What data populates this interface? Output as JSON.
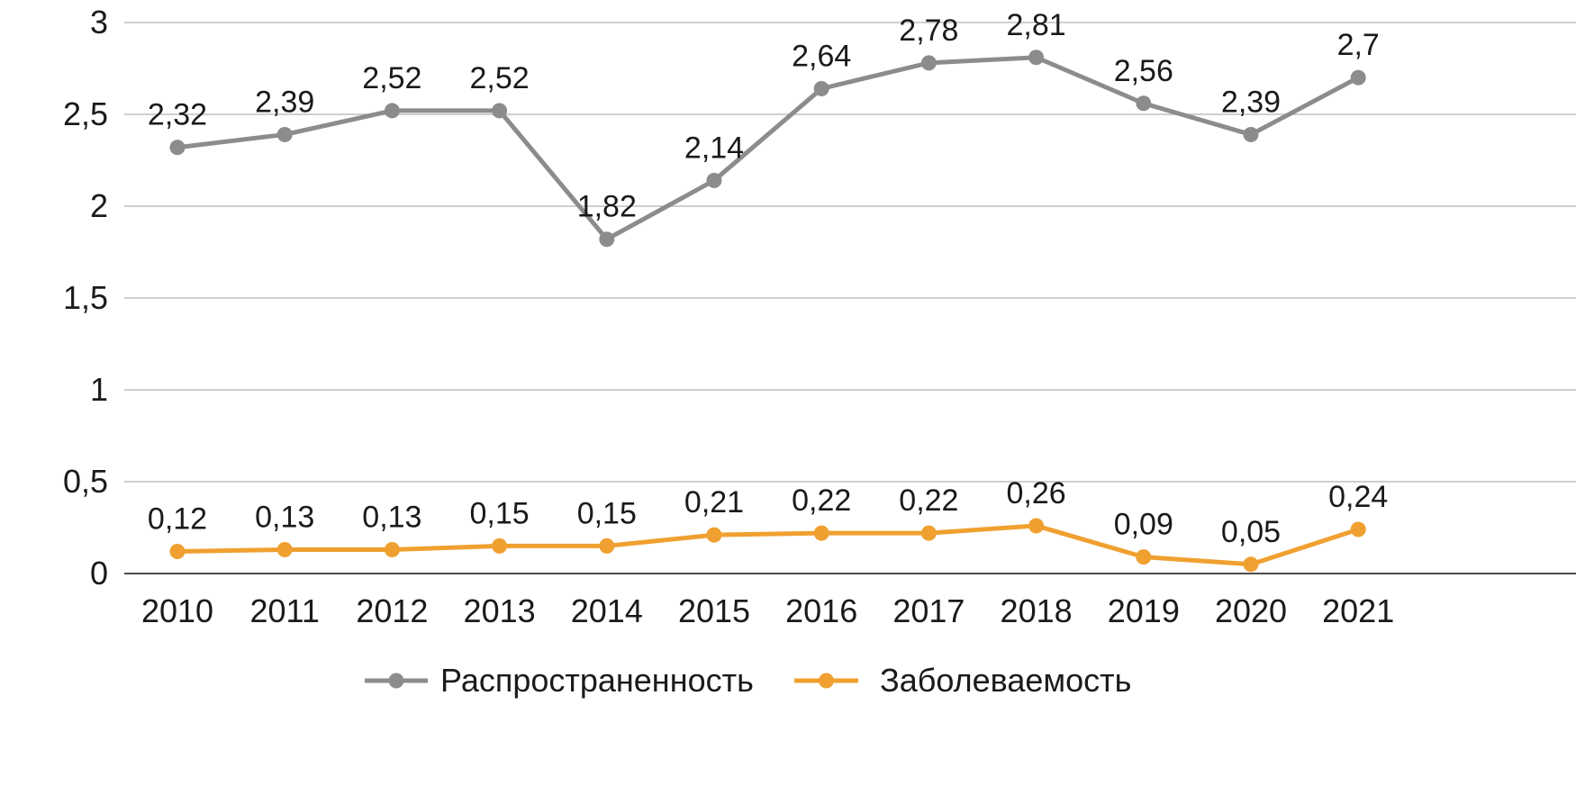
{
  "chart_data": {
    "type": "line",
    "categories": [
      "2010",
      "2011",
      "2012",
      "2013",
      "2014",
      "2015",
      "2016",
      "2017",
      "2018",
      "2019",
      "2020",
      "2021"
    ],
    "series": [
      {
        "name": "Распространенность",
        "color": "#8c8c8c",
        "values": [
          2.32,
          2.39,
          2.52,
          2.52,
          1.82,
          2.14,
          2.64,
          2.78,
          2.81,
          2.56,
          2.39,
          2.7
        ],
        "labels": [
          "2,32",
          "2,39",
          "2,52",
          "2,52",
          "1,82",
          "2,14",
          "2,64",
          "2,78",
          "2,81",
          "2,56",
          "2,39",
          "2,7"
        ]
      },
      {
        "name": "Заболеваемость",
        "color": "#f0a030",
        "values": [
          0.12,
          0.13,
          0.13,
          0.15,
          0.15,
          0.21,
          0.22,
          0.22,
          0.26,
          0.09,
          0.05,
          0.24
        ],
        "labels": [
          "0,12",
          "0,13",
          "0,13",
          "0,15",
          "0,15",
          "0,21",
          "0,22",
          "0,22",
          "0,26",
          "0,09",
          "0,05",
          "0,24"
        ]
      }
    ],
    "y_ticks": [
      "0",
      "0,5",
      "1",
      "1,5",
      "2",
      "2,5",
      "3"
    ],
    "ylim": [
      0,
      3
    ],
    "grid": true,
    "legend_position": "bottom",
    "title": "",
    "xlabel": "",
    "ylabel": ""
  }
}
